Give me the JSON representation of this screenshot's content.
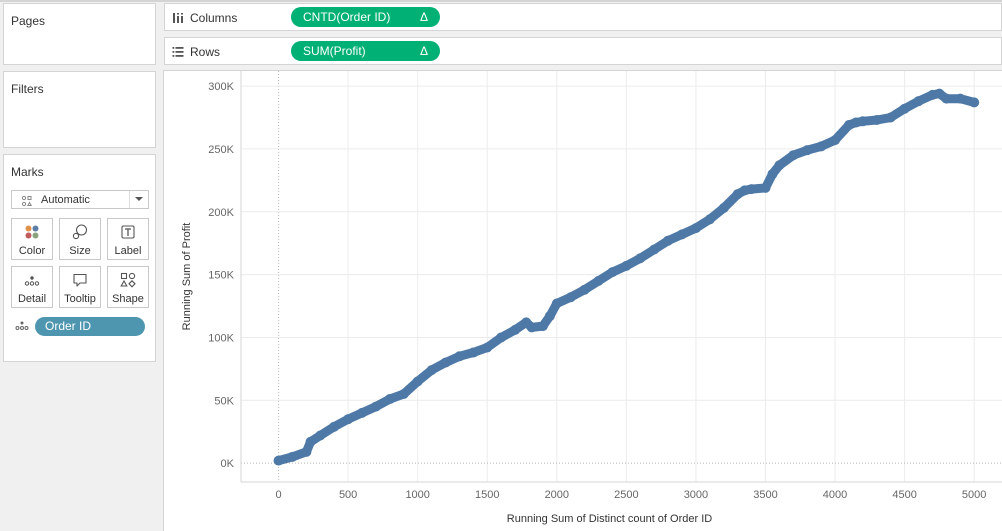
{
  "sidebar": {
    "pages_label": "Pages",
    "filters_label": "Filters",
    "marks": {
      "label": "Marks",
      "mark_type": "Automatic",
      "buttons": [
        {
          "label": "Color",
          "icon": "color-icon"
        },
        {
          "label": "Size",
          "icon": "size-icon"
        },
        {
          "label": "Label",
          "icon": "label-icon"
        },
        {
          "label": "Detail",
          "icon": "detail-icon"
        },
        {
          "label": "Tooltip",
          "icon": "tooltip-icon"
        },
        {
          "label": "Shape",
          "icon": "shape-icon"
        }
      ],
      "detail_field": "Order ID"
    }
  },
  "shelves": {
    "columns_label": "Columns",
    "columns_pill": "CNTD(Order ID)",
    "rows_label": "Rows",
    "rows_pill": "SUM(Profit)",
    "delta_symbol": "Δ"
  },
  "colors": {
    "mark": "#4e79a7",
    "measure_pill": "#00b074",
    "dimension_pill": "#4e96b0"
  },
  "chart_data": {
    "type": "line",
    "xlabel": "Running Sum of Distinct count of Order ID",
    "ylabel": "Running Sum of Profit",
    "xlim": [
      -270,
      5200
    ],
    "ylim": [
      -15000,
      312000
    ],
    "x_ticks": [
      0,
      500,
      1000,
      1500,
      2000,
      2500,
      3000,
      3500,
      4000,
      4500,
      5000
    ],
    "x_tick_labels": [
      "0",
      "500",
      "1000",
      "1500",
      "2000",
      "2500",
      "3000",
      "3500",
      "4000",
      "4500",
      "5000"
    ],
    "y_ticks": [
      0,
      50000,
      100000,
      150000,
      200000,
      250000,
      300000
    ],
    "y_tick_labels": [
      "0K",
      "50K",
      "100K",
      "150K",
      "200K",
      "250K",
      "300K"
    ],
    "grid": true,
    "series": [
      {
        "x": [
          0,
          100,
          200,
          230,
          300,
          400,
          500,
          600,
          700,
          800,
          900,
          1000,
          1100,
          1200,
          1300,
          1400,
          1500,
          1600,
          1700,
          1780,
          1820,
          1900,
          1950,
          2000,
          2100,
          2200,
          2300,
          2400,
          2500,
          2600,
          2700,
          2800,
          2900,
          3000,
          3100,
          3200,
          3300,
          3350,
          3400,
          3500,
          3550,
          3600,
          3700,
          3800,
          3900,
          4000,
          4100,
          4150,
          4200,
          4300,
          4400,
          4500,
          4600,
          4700,
          4750,
          4800,
          4900,
          5000
        ],
        "y": [
          2000,
          5000,
          9000,
          17000,
          22000,
          29000,
          35000,
          40000,
          45000,
          51000,
          55000,
          65000,
          74000,
          80000,
          85000,
          88000,
          92000,
          100000,
          106000,
          112000,
          108000,
          109000,
          117000,
          127000,
          132000,
          138000,
          145000,
          152000,
          157000,
          163000,
          170000,
          177000,
          182000,
          187000,
          194000,
          203000,
          214000,
          217000,
          218000,
          219000,
          230000,
          237000,
          245000,
          249000,
          252000,
          257000,
          269000,
          271000,
          272000,
          273000,
          275000,
          282000,
          288000,
          293000,
          294000,
          290000,
          290000,
          287000
        ]
      }
    ]
  }
}
